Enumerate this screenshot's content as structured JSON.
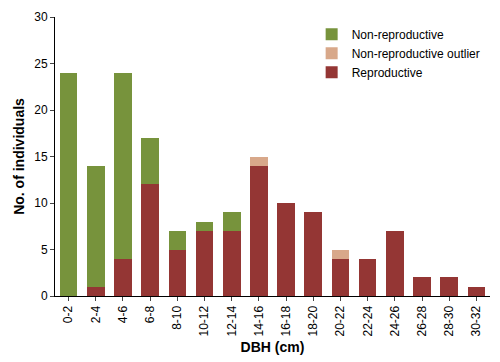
{
  "chart_data": {
    "type": "bar",
    "stacked": true,
    "x_label": "DBH (cm)",
    "y_label": "No. of individuals",
    "categories": [
      "0-2",
      "2-4",
      "4-6",
      "6-8",
      "8-10",
      "10-12",
      "12-14",
      "14-16",
      "16-18",
      "18-20",
      "20-22",
      "22-24",
      "24-26",
      "26-28",
      "28-30",
      "30-32"
    ],
    "series": [
      {
        "name": "Reproductive",
        "color": "#943634",
        "values": [
          0,
          1,
          4,
          12,
          5,
          7,
          7,
          14,
          10,
          9,
          4,
          4,
          7,
          2,
          2,
          1
        ]
      },
      {
        "name": "Non-reproductive outlier",
        "color": "#d8a88a",
        "values": [
          0,
          0,
          0,
          0,
          0,
          0,
          0,
          1,
          0,
          0,
          1,
          0,
          0,
          0,
          0,
          0
        ]
      },
      {
        "name": "Non-reproductive",
        "color": "#77933c",
        "values": [
          24,
          13,
          20,
          5,
          2,
          1,
          2,
          0,
          0,
          0,
          0,
          0,
          0,
          0,
          0,
          0
        ]
      }
    ],
    "ylim": [
      0,
      30
    ],
    "yticks": [
      0,
      5,
      10,
      15,
      20,
      25,
      30
    ],
    "grid": false,
    "legend": "top right"
  }
}
